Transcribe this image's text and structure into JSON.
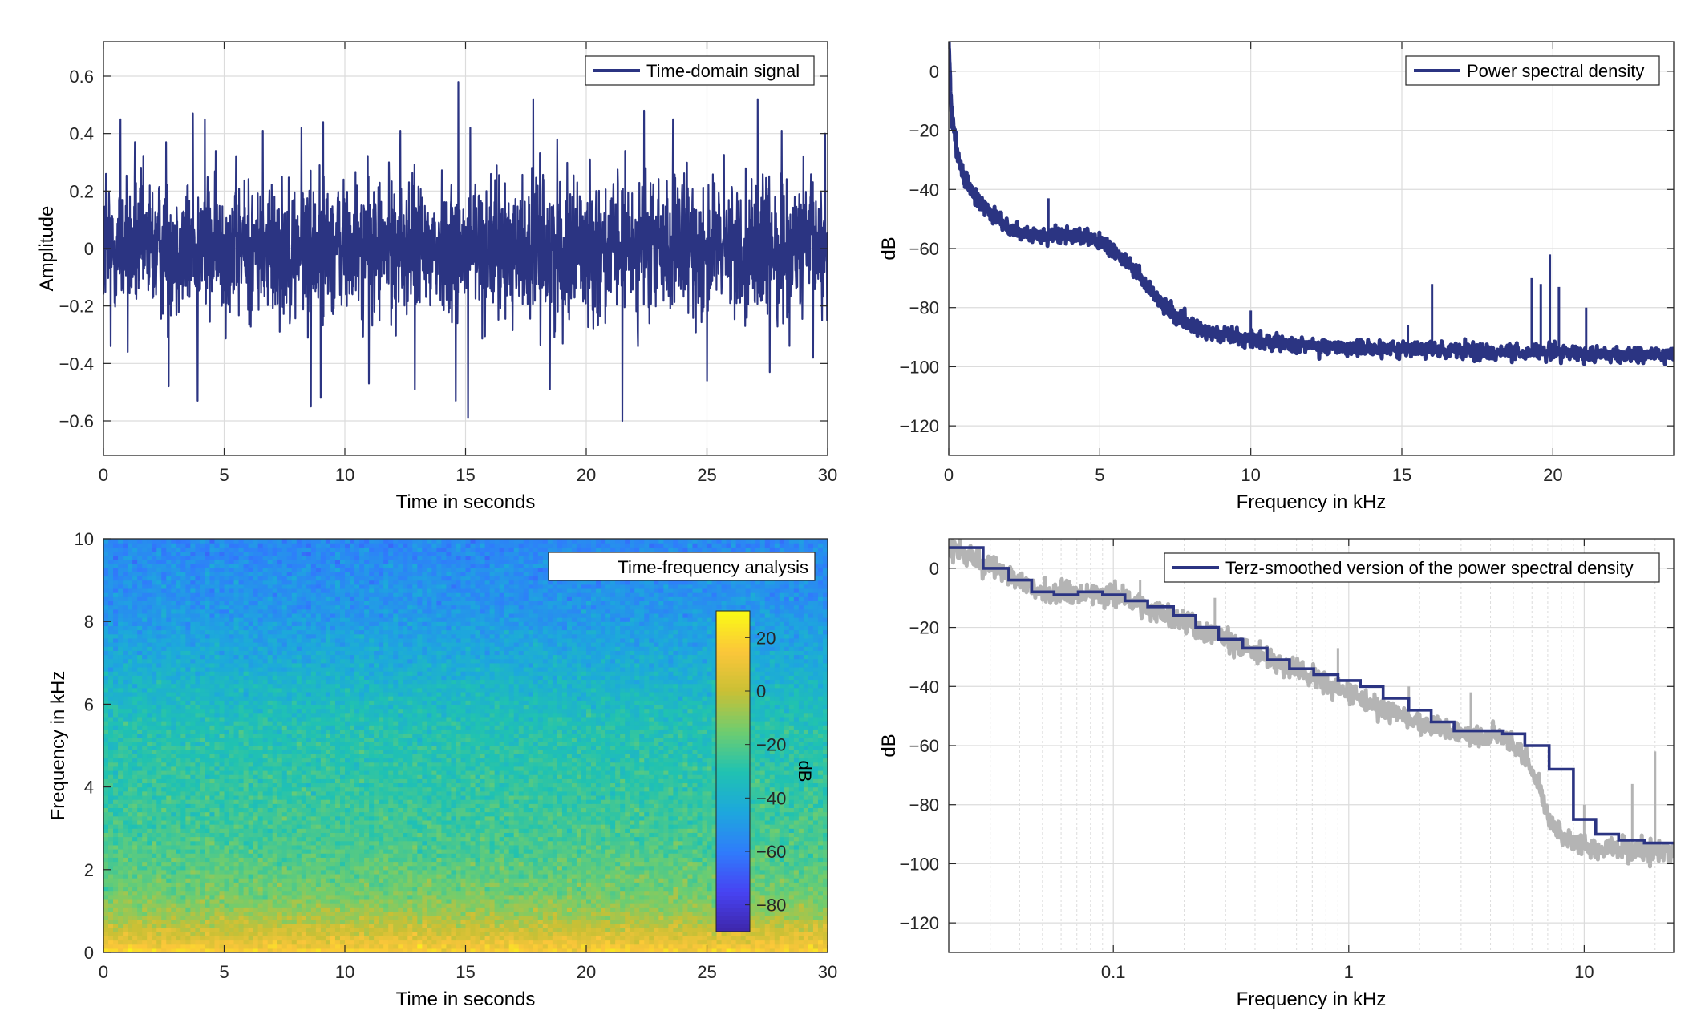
{
  "colors": {
    "line": "#2b3482",
    "grid": "#dcdcdc",
    "axis": "#262626",
    "raw_psd": "#b4b4b4",
    "colormap": [
      "#3e26a8",
      "#4743f3",
      "#2f7dfb",
      "#1da8dc",
      "#20c2b1",
      "#6fcd6f",
      "#c9c035",
      "#fbc63a",
      "#f9fb15"
    ]
  },
  "chart_data": [
    {
      "type": "line",
      "id": "time_domain",
      "xlabel": "Time in seconds",
      "ylabel": "Amplitude",
      "xlim": [
        0,
        30
      ],
      "ylim": [
        -0.72,
        0.72
      ],
      "xticks": [
        0,
        5,
        10,
        15,
        20,
        25,
        30
      ],
      "yticks": [
        -0.6,
        -0.4,
        -0.2,
        0,
        0.2,
        0.4,
        0.6
      ],
      "grid": true,
      "legend": {
        "position": "top-right",
        "entries": [
          "Time-domain signal"
        ]
      },
      "series": [
        {
          "name": "Time-domain signal",
          "note_envelope": "noise-like signal, mostly within ±0.3, peaks shown below",
          "peaks": [
            {
              "x": 0.1,
              "y": 0.26
            },
            {
              "x": 0.7,
              "y": 0.45
            },
            {
              "x": 1.3,
              "y": 0.37
            },
            {
              "x": 2.6,
              "y": 0.37
            },
            {
              "x": 3.7,
              "y": 0.47
            },
            {
              "x": 4.2,
              "y": 0.45
            },
            {
              "x": 6.6,
              "y": 0.41
            },
            {
              "x": 8.2,
              "y": 0.42
            },
            {
              "x": 9.1,
              "y": 0.44
            },
            {
              "x": 12.3,
              "y": 0.41
            },
            {
              "x": 14.7,
              "y": 0.58
            },
            {
              "x": 15.2,
              "y": 0.42
            },
            {
              "x": 17.8,
              "y": 0.52
            },
            {
              "x": 18.8,
              "y": 0.38
            },
            {
              "x": 22.4,
              "y": 0.48
            },
            {
              "x": 23.6,
              "y": 0.45
            },
            {
              "x": 27.1,
              "y": 0.52
            },
            {
              "x": 28.1,
              "y": 0.41
            },
            {
              "x": 29.9,
              "y": 0.4
            },
            {
              "x": 0.3,
              "y": -0.34
            },
            {
              "x": 1.0,
              "y": -0.36
            },
            {
              "x": 2.7,
              "y": -0.48
            },
            {
              "x": 3.9,
              "y": -0.53
            },
            {
              "x": 8.6,
              "y": -0.55
            },
            {
              "x": 9.0,
              "y": -0.52
            },
            {
              "x": 11.0,
              "y": -0.47
            },
            {
              "x": 12.9,
              "y": -0.49
            },
            {
              "x": 14.6,
              "y": -0.53
            },
            {
              "x": 15.1,
              "y": -0.59
            },
            {
              "x": 18.5,
              "y": -0.49
            },
            {
              "x": 21.5,
              "y": -0.6
            },
            {
              "x": 25.0,
              "y": -0.46
            },
            {
              "x": 27.6,
              "y": -0.43
            },
            {
              "x": 29.4,
              "y": -0.38
            }
          ]
        }
      ]
    },
    {
      "type": "line",
      "id": "psd",
      "xlabel": "Frequency in kHz",
      "ylabel": "dB",
      "xlim": [
        0,
        24
      ],
      "ylim": [
        -130,
        10
      ],
      "xticks": [
        0,
        5,
        10,
        15,
        20
      ],
      "yticks": [
        -120,
        -100,
        -80,
        -60,
        -40,
        -20,
        0
      ],
      "grid": true,
      "legend": {
        "position": "top-right",
        "entries": [
          "Power spectral density"
        ]
      },
      "series": [
        {
          "name": "Power spectral density",
          "x": [
            0,
            0.05,
            0.1,
            0.2,
            0.3,
            0.5,
            0.8,
            1.0,
            1.5,
            2.0,
            2.5,
            3.0,
            3.5,
            4.0,
            4.5,
            5.0,
            5.5,
            6.0,
            6.5,
            7.0,
            7.5,
            8.0,
            8.5,
            9.0,
            10,
            11,
            12,
            14,
            16,
            18,
            20,
            22,
            24
          ],
          "y": [
            10,
            -5,
            -15,
            -22,
            -28,
            -36,
            -41,
            -44,
            -49,
            -53,
            -55,
            -56,
            -56,
            -55,
            -56,
            -58,
            -61,
            -66,
            -72,
            -78,
            -83,
            -86,
            -88,
            -89,
            -91,
            -92,
            -93,
            -94,
            -94,
            -95,
            -95,
            -96,
            -96
          ],
          "spikes": [
            {
              "x": 3.3,
              "y": -43
            },
            {
              "x": 10.0,
              "y": -81
            },
            {
              "x": 15.2,
              "y": -86
            },
            {
              "x": 16.0,
              "y": -72
            },
            {
              "x": 19.3,
              "y": -70
            },
            {
              "x": 19.6,
              "y": -72
            },
            {
              "x": 19.9,
              "y": -62
            },
            {
              "x": 20.2,
              "y": -73
            },
            {
              "x": 21.1,
              "y": -80
            }
          ]
        }
      ]
    },
    {
      "type": "heatmap",
      "id": "spectrogram",
      "xlabel": "Time in seconds",
      "ylabel": "Frequency in kHz",
      "xlim": [
        0,
        30
      ],
      "ylim": [
        0,
        10
      ],
      "xticks": [
        0,
        5,
        10,
        15,
        20,
        25,
        30
      ],
      "yticks": [
        0,
        2,
        4,
        6,
        8,
        10
      ],
      "legend": {
        "position": "top-right",
        "entries": [
          "Time-frequency analysis"
        ]
      },
      "colorbar": {
        "label": "dB",
        "range": [
          -90,
          30
        ],
        "ticks": [
          -80,
          -60,
          -40,
          -20,
          0,
          20
        ]
      },
      "freq_profile": {
        "freq_khz": [
          0,
          0.3,
          0.8,
          1.5,
          2.5,
          4,
          5.5,
          6.5,
          7.5,
          8.5,
          10
        ],
        "level_db": [
          18,
          8,
          -5,
          -15,
          -22,
          -27,
          -31,
          -38,
          -46,
          -52,
          -56
        ]
      }
    },
    {
      "type": "line",
      "id": "terz",
      "xlabel": "Frequency in kHz",
      "ylabel": "dB",
      "xscale": "log",
      "xlim": [
        0.02,
        24
      ],
      "ylim": [
        -130,
        10
      ],
      "xticks": [
        0.1,
        1,
        10
      ],
      "xticklabels": [
        "0.1",
        "1",
        "10"
      ],
      "yticks": [
        -120,
        -100,
        -80,
        -60,
        -40,
        -20,
        0
      ],
      "grid": true,
      "legend": {
        "position": "top-right",
        "entries": [
          "Terz-smoothed version of the power spectral density"
        ]
      },
      "series": [
        {
          "name": "Terz-smoothed version of the power spectral density",
          "edges_khz": [
            0.02,
            0.028,
            0.036,
            0.045,
            0.056,
            0.071,
            0.09,
            0.112,
            0.14,
            0.18,
            0.224,
            0.28,
            0.355,
            0.45,
            0.56,
            0.71,
            0.9,
            1.12,
            1.4,
            1.8,
            2.24,
            2.8,
            3.55,
            4.5,
            5.6,
            7.1,
            9.0,
            11.2,
            14.0,
            18.0,
            24
          ],
          "levels_db": [
            7,
            0,
            -4,
            -8,
            -9,
            -8,
            -9,
            -11,
            -13,
            -16,
            -20,
            -24,
            -27,
            -31,
            -34,
            -36,
            -38,
            -40,
            -44,
            -48,
            -52,
            -55,
            -55,
            -56,
            -60,
            -68,
            -85,
            -90,
            -92,
            -93
          ]
        },
        {
          "name": "",
          "x": [
            0.02,
            0.05,
            0.1,
            0.2,
            0.5,
            1,
            2,
            3,
            4.5,
            5.5,
            6.5,
            7,
            8,
            9,
            10,
            12,
            15,
            20,
            24
          ],
          "y": [
            7,
            -8,
            -9,
            -18,
            -32,
            -42,
            -53,
            -56,
            -57,
            -62,
            -75,
            -85,
            -90,
            -93,
            -94,
            -95,
            -95,
            -96,
            -96
          ],
          "spikes": [
            {
              "x": 0.13,
              "y": -4
            },
            {
              "x": 0.27,
              "y": -10
            },
            {
              "x": 0.9,
              "y": -27
            },
            {
              "x": 1.8,
              "y": -40
            },
            {
              "x": 3.3,
              "y": -42
            },
            {
              "x": 10.0,
              "y": -80
            },
            {
              "x": 16.0,
              "y": -73
            },
            {
              "x": 20.0,
              "y": -62
            }
          ]
        }
      ]
    }
  ]
}
